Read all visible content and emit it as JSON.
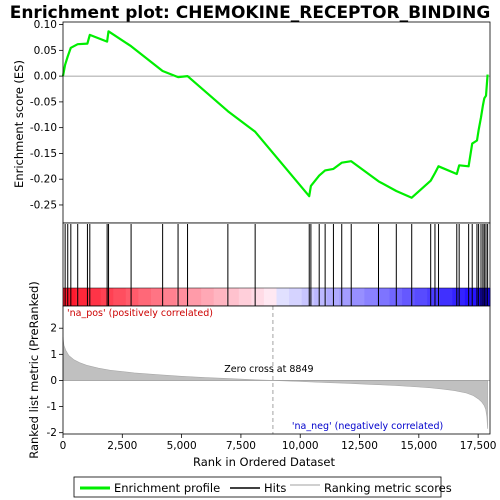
{
  "chart_data": {
    "type": "line",
    "title": "Enrichment plot: CHEMOKINE_RECEPTOR_BINDING",
    "xlabel": "Rank in Ordered Dataset",
    "ylabel_top": "Enrichment score (ES)",
    "ylabel_bottom": "Ranked list metric (PreRanked)",
    "xlim": [
      0,
      18000
    ],
    "x_ticks": [
      0,
      2500,
      5000,
      7500,
      10000,
      12500,
      15000,
      17500
    ],
    "x_tick_labels": [
      "0",
      "2,500",
      "5,000",
      "7,500",
      "10,000",
      "12,500",
      "15,000",
      "17,500"
    ],
    "es_ylim": [
      -0.285,
      0.105
    ],
    "es_ticks": [
      0.1,
      0.05,
      0.0,
      -0.05,
      -0.1,
      -0.15,
      -0.2,
      -0.25
    ],
    "es_tick_labels": [
      "0.10",
      "0.05",
      "0.00",
      "-0.05",
      "-0.10",
      "-0.15",
      "-0.20",
      "-0.25"
    ],
    "metric_ylim": [
      -2.05,
      2.85
    ],
    "metric_ticks": [
      2,
      1,
      0,
      -1,
      -2
    ],
    "metric_tick_labels": [
      "2",
      "1",
      "0",
      "-1",
      "-2"
    ],
    "zero_cross": 8849,
    "zero_cross_label": "Zero cross at 8849",
    "pos_label": "'na_pos' (positively correlated)",
    "neg_label": "'na_neg' (negatively correlated)",
    "colors": {
      "enrichment_line": "#00ee00",
      "hits": "#000000",
      "metric_fill": "#c0c0c0",
      "pos_label": "#cc0000",
      "neg_label": "#0000cc",
      "zero_cross_line": "#999999"
    },
    "hits": [
      90,
      200,
      330,
      620,
      1030,
      1130,
      1860,
      1920,
      2870,
      4200,
      4850,
      5250,
      6950,
      8100,
      10380,
      10450,
      10800,
      11050,
      11400,
      11750,
      12150,
      13300,
      14050,
      14700,
      15500,
      15680,
      15830,
      16600,
      16700,
      17100,
      17250,
      17450,
      17520,
      17620,
      17700,
      17760,
      17830,
      17900
    ],
    "es_profile": [
      [
        0,
        0.0
      ],
      [
        90,
        0.022
      ],
      [
        200,
        0.038
      ],
      [
        330,
        0.055
      ],
      [
        620,
        0.062
      ],
      [
        1030,
        0.063
      ],
      [
        1130,
        0.08
      ],
      [
        1860,
        0.067
      ],
      [
        1920,
        0.087
      ],
      [
        2870,
        0.058
      ],
      [
        4200,
        0.01
      ],
      [
        4850,
        -0.002
      ],
      [
        5250,
        0.0
      ],
      [
        6950,
        -0.068
      ],
      [
        8100,
        -0.108
      ],
      [
        10380,
        -0.233
      ],
      [
        10450,
        -0.213
      ],
      [
        10800,
        -0.193
      ],
      [
        11050,
        -0.183
      ],
      [
        11400,
        -0.18
      ],
      [
        11750,
        -0.168
      ],
      [
        12150,
        -0.165
      ],
      [
        13300,
        -0.204
      ],
      [
        14050,
        -0.223
      ],
      [
        14700,
        -0.236
      ],
      [
        15500,
        -0.203
      ],
      [
        15680,
        -0.188
      ],
      [
        15830,
        -0.175
      ],
      [
        16600,
        -0.19
      ],
      [
        16700,
        -0.173
      ],
      [
        17100,
        -0.175
      ],
      [
        17250,
        -0.131
      ],
      [
        17450,
        -0.125
      ],
      [
        17520,
        -0.105
      ],
      [
        17620,
        -0.08
      ],
      [
        17700,
        -0.057
      ],
      [
        17760,
        -0.043
      ],
      [
        17830,
        -0.038
      ],
      [
        17900,
        0.003
      ]
    ],
    "metric_profile": [
      [
        0,
        1.65
      ],
      [
        40,
        1.35
      ],
      [
        120,
        1.15
      ],
      [
        250,
        0.95
      ],
      [
        450,
        0.8
      ],
      [
        700,
        0.68
      ],
      [
        1000,
        0.58
      ],
      [
        1500,
        0.47
      ],
      [
        2000,
        0.39
      ],
      [
        3000,
        0.29
      ],
      [
        4000,
        0.22
      ],
      [
        5000,
        0.16
      ],
      [
        6000,
        0.11
      ],
      [
        7000,
        0.07
      ],
      [
        8000,
        0.03
      ],
      [
        8849,
        0.0
      ],
      [
        10000,
        -0.04
      ],
      [
        11000,
        -0.08
      ],
      [
        12000,
        -0.11
      ],
      [
        13000,
        -0.15
      ],
      [
        14000,
        -0.19
      ],
      [
        15000,
        -0.25
      ],
      [
        15500,
        -0.28
      ],
      [
        16000,
        -0.33
      ],
      [
        16500,
        -0.39
      ],
      [
        17000,
        -0.48
      ],
      [
        17300,
        -0.58
      ],
      [
        17500,
        -0.7
      ],
      [
        17650,
        -0.82
      ],
      [
        17750,
        -0.95
      ],
      [
        17820,
        -1.1
      ],
      [
        17870,
        -1.4
      ],
      [
        17900,
        -1.85
      ]
    ]
  },
  "legend": {
    "items": [
      {
        "label": "Enrichment profile",
        "color": "#00ee00",
        "kind": "line"
      },
      {
        "label": "Hits",
        "color": "#000000",
        "kind": "line"
      },
      {
        "label": "Ranking metric scores",
        "color": "#c0c0c0",
        "kind": "line"
      }
    ]
  }
}
